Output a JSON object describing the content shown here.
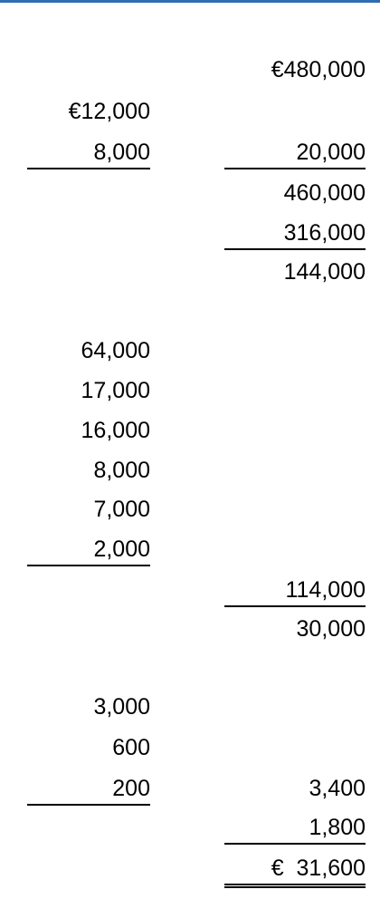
{
  "rows": [
    {
      "col1": "",
      "col2": "€480,000"
    },
    {
      "col1": "€12,000",
      "col2": ""
    },
    {
      "col1": "8,000",
      "col2": "20,000"
    },
    {
      "col1": "",
      "col2": "460,000"
    },
    {
      "col1": "",
      "col2": "316,000"
    },
    {
      "col1": "",
      "col2": "144,000"
    },
    {
      "col1": "64,000",
      "col2": ""
    },
    {
      "col1": "17,000",
      "col2": ""
    },
    {
      "col1": "16,000",
      "col2": ""
    },
    {
      "col1": "8,000",
      "col2": ""
    },
    {
      "col1": "7,000",
      "col2": ""
    },
    {
      "col1": "2,000",
      "col2": ""
    },
    {
      "col1": "",
      "col2": "114,000"
    },
    {
      "col1": "",
      "col2": "30,000"
    },
    {
      "col1": "3,000",
      "col2": ""
    },
    {
      "col1": "600",
      "col2": ""
    },
    {
      "col1": "200",
      "col2": "3,400"
    },
    {
      "col1": "",
      "col2": "1,800"
    },
    {
      "col1": "",
      "col2": "€  31,600"
    }
  ]
}
